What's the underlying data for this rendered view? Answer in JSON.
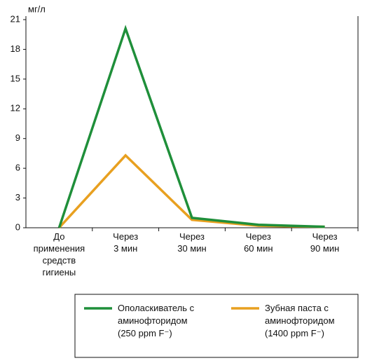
{
  "chart_data": {
    "type": "line",
    "y_unit": "мг/л",
    "categories": [
      "До\nприменения\nсредств\nгигиены",
      "Через\n3 мин",
      "Через\n30 мин",
      "Через\n60 мин",
      "Через\n90 мин"
    ],
    "series": [
      {
        "name": "Ополаскиватель с\nаминофторидом\n(250 ppm F⁻)",
        "color": "#1f8f3a",
        "values": [
          0,
          20.1,
          1.0,
          0.3,
          0.1
        ]
      },
      {
        "name": "Зубная паста с\nаминофторидом\n(1400 ppm F⁻)",
        "color": "#e8a020",
        "values": [
          0,
          7.3,
          0.8,
          0.2,
          0.1
        ]
      }
    ],
    "ylim": [
      0,
      21
    ],
    "yticks": [
      0,
      3,
      6,
      9,
      12,
      15,
      18,
      21
    ]
  }
}
